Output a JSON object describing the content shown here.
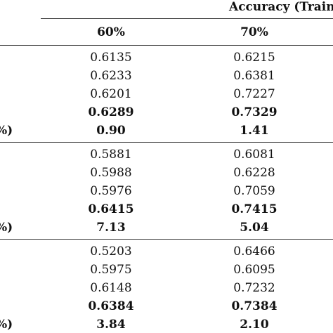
{
  "table": {
    "header_group": "Accuracy (Train",
    "columns": [
      "60%",
      "70%"
    ],
    "blocks": [
      {
        "stub_fragment": "%)",
        "rows": [
          {
            "values": [
              "0.6135",
              "0.6215"
            ],
            "bold": false
          },
          {
            "values": [
              "0.6233",
              "0.6381"
            ],
            "bold": false
          },
          {
            "values": [
              "0.6201",
              "0.7227"
            ],
            "bold": false
          },
          {
            "values": [
              "0.6289",
              "0.7329"
            ],
            "bold": true
          },
          {
            "values": [
              "0.90",
              "1.41"
            ],
            "bold": true
          }
        ]
      },
      {
        "stub_fragment": "%)",
        "rows": [
          {
            "values": [
              "0.5881",
              "0.6081"
            ],
            "bold": false
          },
          {
            "values": [
              "0.5988",
              "0.6228"
            ],
            "bold": false
          },
          {
            "values": [
              "0.5976",
              "0.7059"
            ],
            "bold": false
          },
          {
            "values": [
              "0.6415",
              "0.7415"
            ],
            "bold": true
          },
          {
            "values": [
              "7.13",
              "5.04"
            ],
            "bold": true
          }
        ]
      },
      {
        "stub_fragment": "%)",
        "rows": [
          {
            "values": [
              "0.5203",
              "0.6466"
            ],
            "bold": false
          },
          {
            "values": [
              "0.5975",
              "0.6095"
            ],
            "bold": false
          },
          {
            "values": [
              "0.6148",
              "0.7232"
            ],
            "bold": false
          },
          {
            "values": [
              "0.6384",
              "0.7384"
            ],
            "bold": true
          },
          {
            "values": [
              "3.84",
              "2.10"
            ],
            "bold": true
          }
        ]
      }
    ]
  }
}
